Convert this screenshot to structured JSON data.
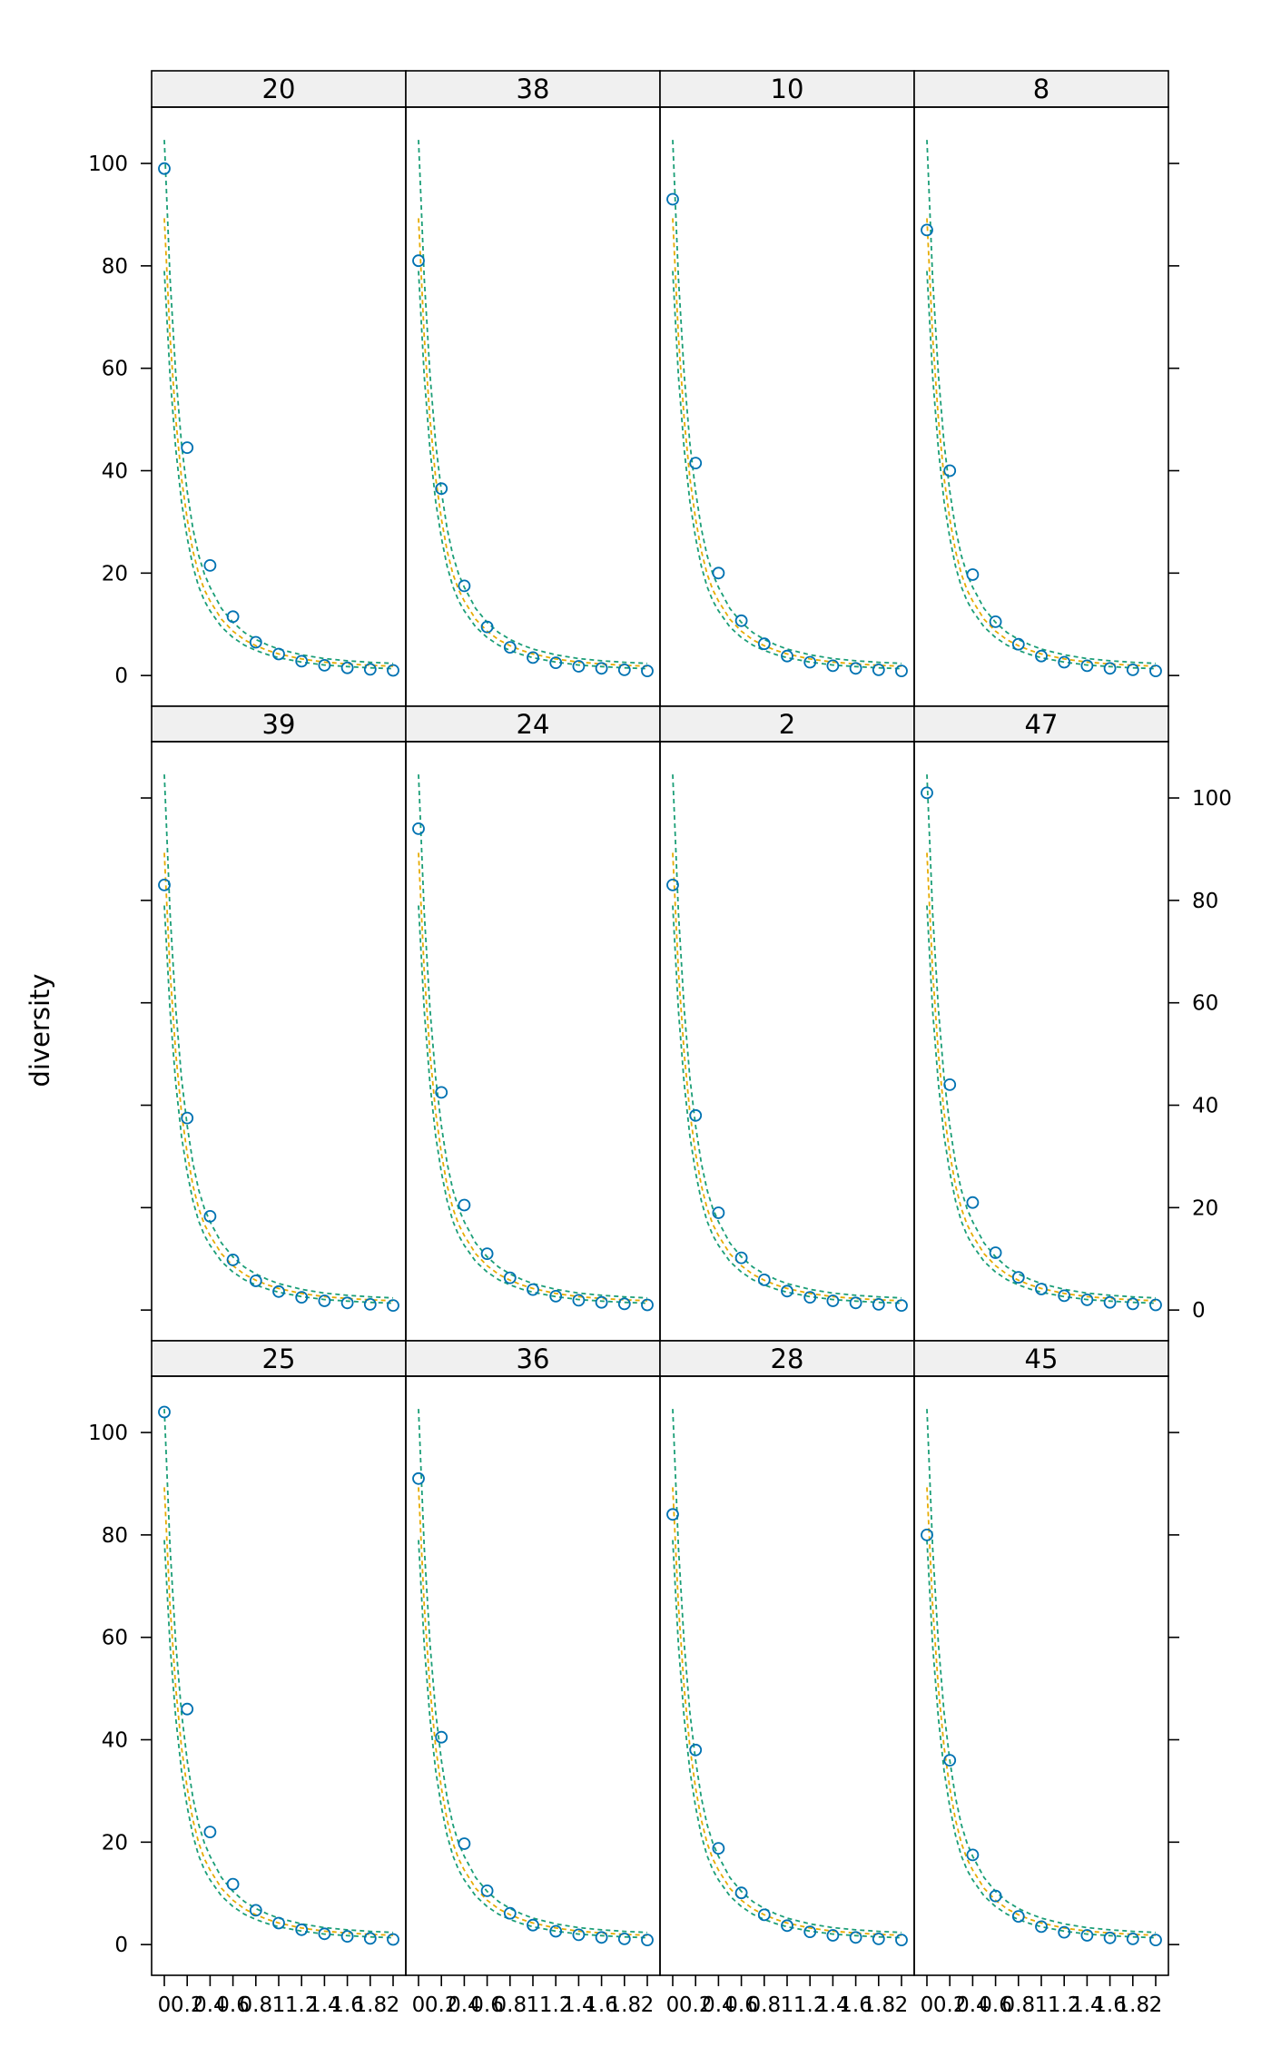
{
  "chart_data": {
    "type": "line",
    "ylabel": "diversity",
    "xlabel": "",
    "xlim": [
      0,
      2
    ],
    "ylim": [
      -6,
      111
    ],
    "x_ticks": [
      "0",
      "0.2",
      "0.4",
      "0.6",
      "0.8",
      "1",
      "1.2",
      "1.4",
      "1.6",
      "1.8",
      "2"
    ],
    "y_ticks": [
      "0",
      "20",
      "40",
      "60",
      "80",
      "100"
    ],
    "x": [
      0,
      0.2,
      0.4,
      0.6,
      0.8,
      1,
      1.2,
      1.4,
      1.6,
      1.8,
      2
    ],
    "curve_x": [
      0,
      0.05,
      0.1,
      0.15,
      0.2,
      0.25,
      0.3,
      0.35,
      0.4,
      0.5,
      0.6,
      0.7,
      0.8,
      0.9,
      1,
      1.2,
      1.4,
      1.6,
      1.8,
      2
    ],
    "curve_shape": [
      1,
      0.74,
      0.56,
      0.43,
      0.34,
      0.27,
      0.22,
      0.185,
      0.16,
      0.12,
      0.094,
      0.075,
      0.062,
      0.052,
      0.044,
      0.033,
      0.026,
      0.022,
      0.019,
      0.017
    ],
    "curves": [
      {
        "color": "#1b9e77",
        "start": 104,
        "offset": 0.6
      },
      {
        "color": "#e6ab02",
        "start": 89,
        "offset": 0.3
      },
      {
        "color": "#1b9e77",
        "start": 79,
        "offset": 0
      }
    ],
    "colors": {
      "points": "#0072b2",
      "strip": "#f0f0f0"
    },
    "panels": [
      {
        "label": "20",
        "y": [
          99,
          44.5,
          21.5,
          11.5,
          6.5,
          4.2,
          2.8,
          2,
          1.5,
          1.2,
          1
        ]
      },
      {
        "label": "38",
        "y": [
          81,
          36.5,
          17.5,
          9.5,
          5.5,
          3.5,
          2.5,
          1.8,
          1.4,
          1.1,
          0.9
        ]
      },
      {
        "label": "10",
        "y": [
          93,
          41.5,
          20,
          10.7,
          6.2,
          3.8,
          2.6,
          1.9,
          1.4,
          1.1,
          0.9
        ]
      },
      {
        "label": "8",
        "y": [
          87,
          40,
          19.7,
          10.5,
          6.1,
          3.8,
          2.6,
          1.9,
          1.4,
          1.1,
          0.9
        ]
      },
      {
        "label": "39",
        "y": [
          83,
          37.5,
          18.3,
          9.8,
          5.7,
          3.6,
          2.5,
          1.8,
          1.4,
          1.1,
          0.9
        ]
      },
      {
        "label": "24",
        "y": [
          94,
          42.5,
          20.5,
          11,
          6.3,
          4,
          2.7,
          1.9,
          1.5,
          1.2,
          1
        ]
      },
      {
        "label": "2",
        "y": [
          83,
          38,
          19,
          10.2,
          5.9,
          3.7,
          2.5,
          1.8,
          1.4,
          1.1,
          0.9
        ]
      },
      {
        "label": "47",
        "y": [
          101,
          44,
          21,
          11.2,
          6.4,
          4.1,
          2.8,
          2,
          1.5,
          1.2,
          1
        ]
      },
      {
        "label": "25",
        "y": [
          104,
          46,
          22,
          11.8,
          6.7,
          4.2,
          2.9,
          2.1,
          1.6,
          1.2,
          1
        ]
      },
      {
        "label": "36",
        "y": [
          91,
          40.5,
          19.7,
          10.5,
          6.1,
          3.8,
          2.6,
          1.9,
          1.4,
          1.1,
          0.9
        ]
      },
      {
        "label": "28",
        "y": [
          84,
          38,
          18.8,
          10.1,
          5.8,
          3.7,
          2.5,
          1.8,
          1.4,
          1.1,
          0.9
        ]
      },
      {
        "label": "45",
        "y": [
          80,
          36,
          17.5,
          9.5,
          5.5,
          3.5,
          2.4,
          1.8,
          1.3,
          1.1,
          0.9
        ]
      }
    ]
  }
}
